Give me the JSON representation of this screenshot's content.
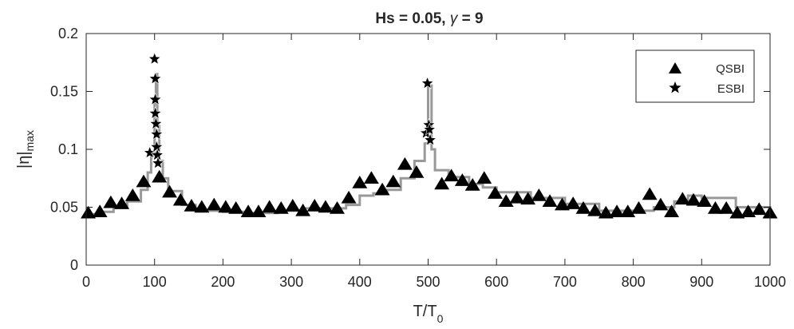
{
  "chart_data": {
    "type": "scatter",
    "title": "Hs = 0.05, γ = 9",
    "title_parts": {
      "prefix": "Hs = 0.05, ",
      "symbol": "γ",
      "suffix": " = 9"
    },
    "xlabel": "T/T",
    "xlabel_sub": "0",
    "ylabel": "|η|",
    "ylabel_sub": "max",
    "xlim": [
      0,
      1000
    ],
    "ylim": [
      0,
      0.2
    ],
    "x_ticks": [
      0,
      100,
      200,
      300,
      400,
      500,
      600,
      700,
      800,
      900,
      1000
    ],
    "y_ticks": [
      0,
      0.05,
      0.1,
      0.15,
      0.2
    ],
    "x_tick_labels": [
      "0",
      "100",
      "200",
      "300",
      "400",
      "500",
      "600",
      "700",
      "800",
      "900",
      "1000"
    ],
    "y_tick_labels": [
      "0",
      "0.05",
      "0.1",
      "0.15",
      "0.2"
    ],
    "grid": false,
    "legend_position": "top-right",
    "background_trace": {
      "color": "#999999",
      "points": [
        [
          0,
          0.044
        ],
        [
          20,
          0.046
        ],
        [
          40,
          0.05
        ],
        [
          60,
          0.055
        ],
        [
          80,
          0.065
        ],
        [
          90,
          0.08
        ],
        [
          95,
          0.095
        ],
        [
          100,
          0.14
        ],
        [
          102,
          0.165
        ],
        [
          104,
          0.12
        ],
        [
          107,
          0.09
        ],
        [
          112,
          0.075
        ],
        [
          120,
          0.064
        ],
        [
          140,
          0.052
        ],
        [
          160,
          0.047
        ],
        [
          200,
          0.046
        ],
        [
          240,
          0.045
        ],
        [
          280,
          0.047
        ],
        [
          320,
          0.049
        ],
        [
          360,
          0.049
        ],
        [
          380,
          0.052
        ],
        [
          400,
          0.06
        ],
        [
          420,
          0.062
        ],
        [
          440,
          0.065
        ],
        [
          460,
          0.075
        ],
        [
          480,
          0.09
        ],
        [
          495,
          0.105
        ],
        [
          500,
          0.155
        ],
        [
          505,
          0.1
        ],
        [
          510,
          0.082
        ],
        [
          530,
          0.076
        ],
        [
          560,
          0.07
        ],
        [
          580,
          0.067
        ],
        [
          600,
          0.063
        ],
        [
          650,
          0.058
        ],
        [
          700,
          0.053
        ],
        [
          750,
          0.047
        ],
        [
          800,
          0.047
        ],
        [
          830,
          0.05
        ],
        [
          860,
          0.055
        ],
        [
          880,
          0.06
        ],
        [
          900,
          0.058
        ],
        [
          950,
          0.05
        ],
        [
          1000,
          0.045
        ]
      ]
    },
    "series": [
      {
        "name": "QSBI",
        "marker": "triangle",
        "color": "#000000",
        "points": [
          [
            3,
            0.045
          ],
          [
            20,
            0.046
          ],
          [
            36,
            0.054
          ],
          [
            52,
            0.053
          ],
          [
            68,
            0.06
          ],
          [
            84,
            0.072
          ],
          [
            107,
            0.076
          ],
          [
            122,
            0.063
          ],
          [
            138,
            0.056
          ],
          [
            154,
            0.051
          ],
          [
            169,
            0.05
          ],
          [
            187,
            0.052
          ],
          [
            204,
            0.05
          ],
          [
            219,
            0.049
          ],
          [
            237,
            0.046
          ],
          [
            252,
            0.046
          ],
          [
            268,
            0.05
          ],
          [
            285,
            0.049
          ],
          [
            302,
            0.051
          ],
          [
            317,
            0.047
          ],
          [
            334,
            0.051
          ],
          [
            350,
            0.05
          ],
          [
            367,
            0.049
          ],
          [
            384,
            0.058
          ],
          [
            400,
            0.071
          ],
          [
            417,
            0.075
          ],
          [
            433,
            0.065
          ],
          [
            449,
            0.072
          ],
          [
            466,
            0.087
          ],
          [
            483,
            0.08
          ],
          [
            520,
            0.07
          ],
          [
            534,
            0.077
          ],
          [
            550,
            0.073
          ],
          [
            565,
            0.069
          ],
          [
            582,
            0.075
          ],
          [
            598,
            0.062
          ],
          [
            614,
            0.055
          ],
          [
            630,
            0.058
          ],
          [
            646,
            0.057
          ],
          [
            662,
            0.06
          ],
          [
            678,
            0.055
          ],
          [
            696,
            0.052
          ],
          [
            712,
            0.053
          ],
          [
            727,
            0.049
          ],
          [
            744,
            0.047
          ],
          [
            760,
            0.045
          ],
          [
            776,
            0.046
          ],
          [
            792,
            0.046
          ],
          [
            808,
            0.049
          ],
          [
            824,
            0.061
          ],
          [
            840,
            0.052
          ],
          [
            856,
            0.046
          ],
          [
            872,
            0.057
          ],
          [
            888,
            0.056
          ],
          [
            904,
            0.055
          ],
          [
            920,
            0.049
          ],
          [
            936,
            0.049
          ],
          [
            952,
            0.045
          ],
          [
            968,
            0.046
          ],
          [
            984,
            0.048
          ],
          [
            1000,
            0.045
          ]
        ]
      },
      {
        "name": "ESBI",
        "marker": "star",
        "color": "#000000",
        "points": [
          [
            93,
            0.097
          ],
          [
            100,
            0.178
          ],
          [
            101,
            0.161
          ],
          [
            101,
            0.143
          ],
          [
            101,
            0.131
          ],
          [
            102,
            0.122
          ],
          [
            103,
            0.113
          ],
          [
            103,
            0.102
          ],
          [
            104,
            0.095
          ],
          [
            105,
            0.088
          ],
          [
            497,
            0.114
          ],
          [
            499,
            0.157
          ],
          [
            501,
            0.121
          ],
          [
            502,
            0.117
          ],
          [
            503,
            0.108
          ]
        ]
      }
    ]
  }
}
